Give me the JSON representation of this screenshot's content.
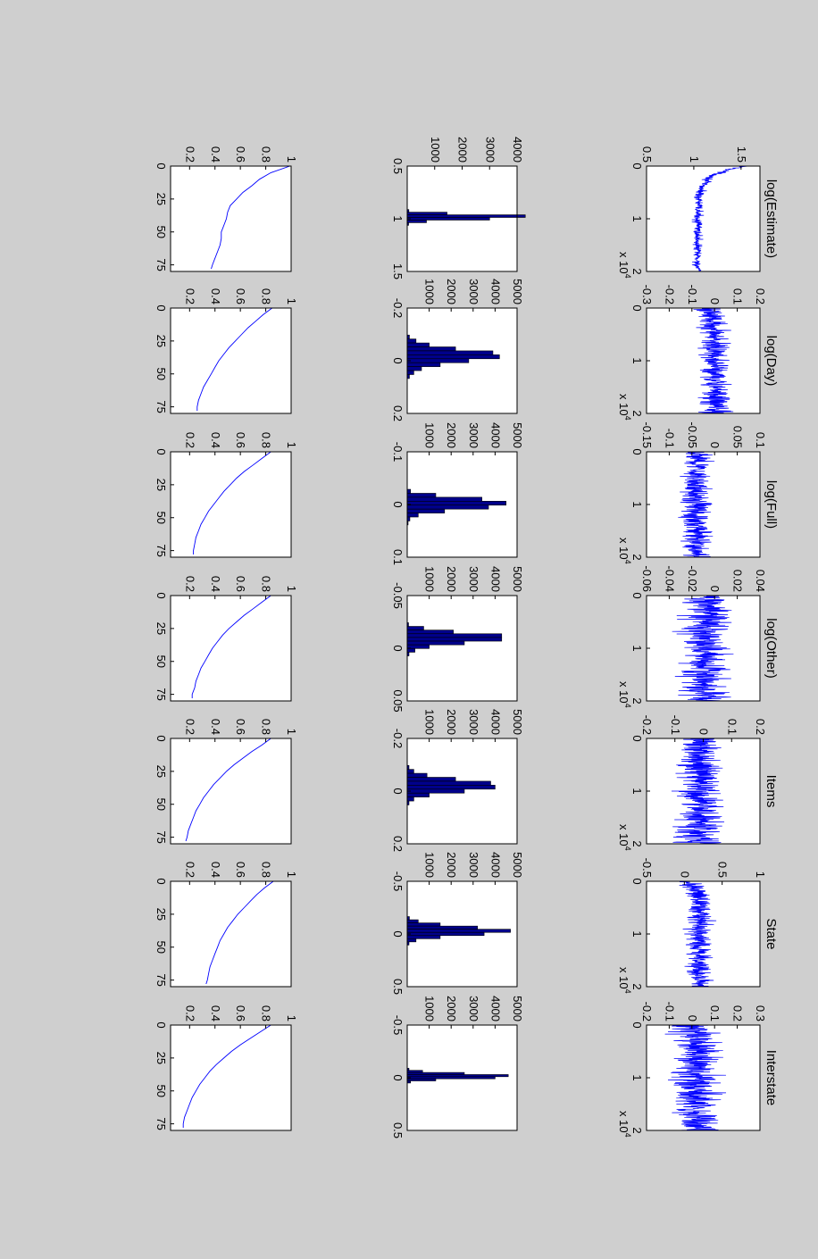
{
  "figure": {
    "background": "#cfcfcf",
    "axes_color": "#ffffff",
    "trace_color": "#0000ff",
    "bar_fill": "#00008b",
    "bar_edge": "#000000"
  },
  "chart_data": [
    {
      "type": "line",
      "title": "log(Estimate)",
      "x_multiplier": "x 10^4",
      "xlim": [
        0,
        2
      ],
      "xticks": [
        "0",
        "1",
        "2"
      ],
      "ylim": [
        0.5,
        1.7
      ],
      "yticks": [
        "0.5",
        "1",
        "1.5"
      ],
      "trace": {
        "start": 1.55,
        "mid": 1.05,
        "end": 1.0,
        "noise": 0.03
      },
      "histogram": {
        "type": "bar",
        "xlim": [
          0.5,
          1.5
        ],
        "xticks": [
          "0.5",
          "1",
          "1.5"
        ],
        "ylim": [
          0,
          4000
        ],
        "yticks": [
          "1000",
          "2000",
          "3000",
          "4000"
        ],
        "bin_centers": [
          0.925,
          0.95,
          0.975,
          1.0,
          1.025,
          1.05
        ],
        "values": [
          60,
          1450,
          4300,
          3000,
          700,
          50
        ]
      },
      "autocorrelation": {
        "type": "line",
        "xlim": [
          0,
          80
        ],
        "xticks": [
          "0",
          "25",
          "50",
          "75"
        ],
        "ylim": [
          0.05,
          1.0
        ],
        "yticks": [
          "0.2",
          "0.4",
          "0.6",
          "0.8",
          "1"
        ],
        "lags": [
          0,
          5,
          10,
          15,
          20,
          25,
          30,
          35,
          40,
          45,
          50,
          55,
          60,
          65,
          70,
          75,
          78
        ],
        "values": [
          0.99,
          0.84,
          0.75,
          0.69,
          0.62,
          0.57,
          0.52,
          0.5,
          0.49,
          0.47,
          0.45,
          0.45,
          0.44,
          0.42,
          0.4,
          0.38,
          0.37
        ]
      }
    },
    {
      "type": "line",
      "title": "log(Day)",
      "x_multiplier": "x 10^4",
      "xlim": [
        0,
        2
      ],
      "xticks": [
        "0",
        "1",
        "2"
      ],
      "ylim": [
        -0.3,
        0.2
      ],
      "yticks": [
        "-0.3",
        "-0.2",
        "-0.1",
        "0",
        "0.1",
        "0.2"
      ],
      "trace": {
        "start": -0.03,
        "mid": 0.0,
        "end": 0.0,
        "noise": 0.04
      },
      "histogram": {
        "type": "bar",
        "xlim": [
          -0.2,
          0.2
        ],
        "xticks": [
          "-0.2",
          "0",
          "0.2"
        ],
        "ylim": [
          0,
          5000
        ],
        "yticks": [
          "1000",
          "2000",
          "3000",
          "4000",
          "5000"
        ],
        "bin_centers": [
          -0.09,
          -0.075,
          -0.06,
          -0.045,
          -0.03,
          -0.015,
          0.0,
          0.015,
          0.03,
          0.045,
          0.06
        ],
        "values": [
          100,
          400,
          1000,
          2200,
          3900,
          4200,
          2800,
          1500,
          650,
          300,
          100
        ]
      },
      "autocorrelation": {
        "type": "line",
        "xlim": [
          0,
          80
        ],
        "xticks": [
          "0",
          "25",
          "50",
          "75"
        ],
        "ylim": [
          0.05,
          1.0
        ],
        "yticks": [
          "0.2",
          "0.4",
          "0.6",
          "0.8",
          "1"
        ],
        "lags": [
          0,
          5,
          10,
          15,
          20,
          25,
          30,
          35,
          40,
          45,
          50,
          55,
          60,
          65,
          70,
          75,
          78
        ],
        "values": [
          0.85,
          0.78,
          0.72,
          0.66,
          0.61,
          0.56,
          0.51,
          0.47,
          0.43,
          0.4,
          0.37,
          0.34,
          0.31,
          0.29,
          0.27,
          0.26,
          0.26
        ]
      }
    },
    {
      "type": "line",
      "title": "log(Full)",
      "x_multiplier": "x 10^4",
      "xlim": [
        0,
        2
      ],
      "xticks": [
        "0",
        "1",
        "2"
      ],
      "ylim": [
        -0.15,
        0.1
      ],
      "yticks": [
        "-0.15",
        "-0.1",
        "-0.05",
        "0",
        "0.05",
        "0.1"
      ],
      "trace": {
        "start": -0.03,
        "mid": -0.04,
        "end": -0.04,
        "noise": 0.02
      },
      "histogram": {
        "type": "bar",
        "xlim": [
          -0.1,
          0.1
        ],
        "xticks": [
          "-0.1",
          "0",
          "0.1"
        ],
        "ylim": [
          0,
          5000
        ],
        "yticks": [
          "1000",
          "2000",
          "3000",
          "4000",
          "5000"
        ],
        "bin_centers": [
          -0.025,
          -0.0175,
          -0.01,
          -0.0025,
          0.005,
          0.0125,
          0.02,
          0.0275,
          0.035
        ],
        "values": [
          150,
          1300,
          3400,
          4500,
          3700,
          1700,
          500,
          120,
          40
        ]
      },
      "autocorrelation": {
        "type": "line",
        "xlim": [
          0,
          80
        ],
        "xticks": [
          "0",
          "25",
          "50",
          "75"
        ],
        "ylim": [
          0.05,
          1.0
        ],
        "yticks": [
          "0.2",
          "0.4",
          "0.6",
          "0.8",
          "1"
        ],
        "lags": [
          0,
          5,
          10,
          15,
          20,
          25,
          30,
          35,
          40,
          45,
          50,
          55,
          60,
          65,
          70,
          75,
          78
        ],
        "values": [
          0.84,
          0.77,
          0.7,
          0.63,
          0.57,
          0.52,
          0.47,
          0.43,
          0.39,
          0.35,
          0.32,
          0.29,
          0.27,
          0.25,
          0.24,
          0.23,
          0.23
        ]
      }
    },
    {
      "type": "line",
      "title": "log(Other)",
      "x_multiplier": "x 10^4",
      "xlim": [
        0,
        2
      ],
      "xticks": [
        "0",
        "1",
        "2"
      ],
      "ylim": [
        -0.06,
        0.04
      ],
      "yticks": [
        "-0.06",
        "-0.04",
        "-0.02",
        "0",
        "0.02",
        "0.04"
      ],
      "trace": {
        "start": -0.005,
        "mid": -0.008,
        "end": -0.008,
        "noise": 0.013
      },
      "histogram": {
        "type": "bar",
        "xlim": [
          -0.05,
          0.05
        ],
        "xticks": [
          "-0.05",
          "0",
          "0.05"
        ],
        "ylim": [
          0,
          5000
        ],
        "yticks": [
          "1000",
          "2000",
          "3000",
          "4000",
          "5000"
        ],
        "bin_centers": [
          -0.0225,
          -0.019,
          -0.0155,
          -0.012,
          -0.0085,
          -0.005,
          -0.0015,
          0.002,
          0.0055
        ],
        "values": [
          60,
          750,
          2100,
          4300,
          4300,
          2600,
          1000,
          350,
          80
        ]
      },
      "autocorrelation": {
        "type": "line",
        "xlim": [
          0,
          80
        ],
        "xticks": [
          "0",
          "25",
          "50",
          "75"
        ],
        "ylim": [
          0.05,
          1.0
        ],
        "yticks": [
          "0.2",
          "0.4",
          "0.6",
          "0.8",
          "1"
        ],
        "lags": [
          0,
          5,
          10,
          15,
          20,
          25,
          30,
          35,
          40,
          45,
          50,
          55,
          60,
          65,
          70,
          75,
          78
        ],
        "values": [
          0.84,
          0.77,
          0.7,
          0.63,
          0.57,
          0.51,
          0.46,
          0.42,
          0.38,
          0.35,
          0.32,
          0.29,
          0.27,
          0.25,
          0.24,
          0.22,
          0.22
        ]
      }
    },
    {
      "type": "line",
      "title": "Items",
      "x_multiplier": "x 10^4",
      "xlim": [
        0,
        2
      ],
      "xticks": [
        "0",
        "1",
        "2"
      ],
      "ylim": [
        -0.2,
        0.2
      ],
      "yticks": [
        "-0.2",
        "-0.1",
        "0",
        "0.1",
        "0.2"
      ],
      "trace": {
        "start": -0.01,
        "mid": -0.01,
        "end": -0.01,
        "noise": 0.05
      },
      "histogram": {
        "type": "bar",
        "xlim": [
          -0.2,
          0.2
        ],
        "xticks": [
          "-0.2",
          "0",
          "0.2"
        ],
        "ylim": [
          0,
          5000
        ],
        "yticks": [
          "1000",
          "2000",
          "3000",
          "4000",
          "5000"
        ],
        "bin_centers": [
          -0.09,
          -0.075,
          -0.06,
          -0.045,
          -0.03,
          -0.015,
          0.0,
          0.015,
          0.03,
          0.045
        ],
        "values": [
          80,
          300,
          900,
          2200,
          3800,
          4000,
          2600,
          1000,
          300,
          80
        ]
      },
      "autocorrelation": {
        "type": "line",
        "xlim": [
          0,
          80
        ],
        "xticks": [
          "0",
          "25",
          "50",
          "75"
        ],
        "ylim": [
          0.05,
          1.0
        ],
        "yticks": [
          "0.2",
          "0.4",
          "0.6",
          "0.8",
          "1"
        ],
        "lags": [
          0,
          5,
          10,
          15,
          20,
          25,
          30,
          35,
          40,
          45,
          50,
          55,
          60,
          65,
          70,
          75,
          78
        ],
        "values": [
          0.84,
          0.77,
          0.69,
          0.62,
          0.55,
          0.49,
          0.44,
          0.39,
          0.35,
          0.31,
          0.28,
          0.25,
          0.23,
          0.21,
          0.19,
          0.18,
          0.17
        ]
      }
    },
    {
      "type": "line",
      "title": "State",
      "x_multiplier": "x 10^4",
      "xlim": [
        0,
        2
      ],
      "xticks": [
        "0",
        "1",
        "2"
      ],
      "ylim": [
        -0.5,
        1.0
      ],
      "yticks": [
        "-0.5",
        "0",
        "0.5",
        "1"
      ],
      "trace": {
        "start": 0.05,
        "mid": 0.2,
        "end": 0.2,
        "noise": 0.1
      },
      "histogram": {
        "type": "bar",
        "xlim": [
          -0.5,
          0.5
        ],
        "xticks": [
          "-0.5",
          "0",
          "0.5"
        ],
        "ylim": [
          0,
          5000
        ],
        "yticks": [
          "1000",
          "2000",
          "3000",
          "4000",
          "5000"
        ],
        "bin_centers": [
          -0.15,
          -0.12,
          -0.09,
          -0.06,
          -0.03,
          0.0,
          0.03,
          0.06,
          0.09
        ],
        "values": [
          100,
          500,
          1500,
          3200,
          4700,
          3500,
          1500,
          400,
          80
        ]
      },
      "autocorrelation": {
        "type": "line",
        "xlim": [
          0,
          80
        ],
        "xticks": [
          "0",
          "25",
          "50",
          "75"
        ],
        "ylim": [
          0.05,
          1.0
        ],
        "yticks": [
          "0.2",
          "0.4",
          "0.6",
          "0.8",
          "1"
        ],
        "lags": [
          0,
          5,
          10,
          15,
          20,
          25,
          30,
          35,
          40,
          45,
          50,
          55,
          60,
          65,
          70,
          75,
          78
        ],
        "values": [
          0.86,
          0.79,
          0.73,
          0.68,
          0.63,
          0.58,
          0.54,
          0.5,
          0.47,
          0.44,
          0.42,
          0.4,
          0.38,
          0.36,
          0.35,
          0.34,
          0.33
        ]
      }
    },
    {
      "type": "line",
      "title": "Interstate",
      "x_multiplier": "x 10^4",
      "xlim": [
        0,
        2
      ],
      "xticks": [
        "0",
        "1",
        "2"
      ],
      "ylim": [
        -0.2,
        0.3
      ],
      "yticks": [
        "-0.2",
        "-0.1",
        "0",
        "0.1",
        "0.2",
        "0.3"
      ],
      "trace": {
        "start": 0.02,
        "mid": 0.02,
        "end": 0.02,
        "noise": 0.06
      },
      "histogram": {
        "type": "bar",
        "xlim": [
          -0.5,
          0.5
        ],
        "xticks": [
          "-0.5",
          "0",
          "0.5"
        ],
        "ylim": [
          0,
          5000
        ],
        "yticks": [
          "1000",
          "2000",
          "3000",
          "4000",
          "5000"
        ],
        "bin_centers": [
          -0.08,
          -0.06,
          -0.04,
          -0.02,
          0.0,
          0.02,
          0.04
        ],
        "values": [
          80,
          700,
          2600,
          4600,
          4000,
          1300,
          150
        ]
      },
      "autocorrelation": {
        "type": "line",
        "xlim": [
          0,
          80
        ],
        "xticks": [
          "0",
          "25",
          "50",
          "75"
        ],
        "ylim": [
          0.05,
          1.0
        ],
        "yticks": [
          "0.2",
          "0.4",
          "0.6",
          "0.8",
          "1"
        ],
        "lags": [
          0,
          5,
          10,
          15,
          20,
          25,
          30,
          35,
          40,
          45,
          50,
          55,
          60,
          65,
          70,
          75,
          78
        ],
        "values": [
          0.84,
          0.76,
          0.68,
          0.6,
          0.53,
          0.47,
          0.41,
          0.36,
          0.32,
          0.28,
          0.25,
          0.22,
          0.2,
          0.18,
          0.16,
          0.15,
          0.15
        ]
      }
    }
  ]
}
